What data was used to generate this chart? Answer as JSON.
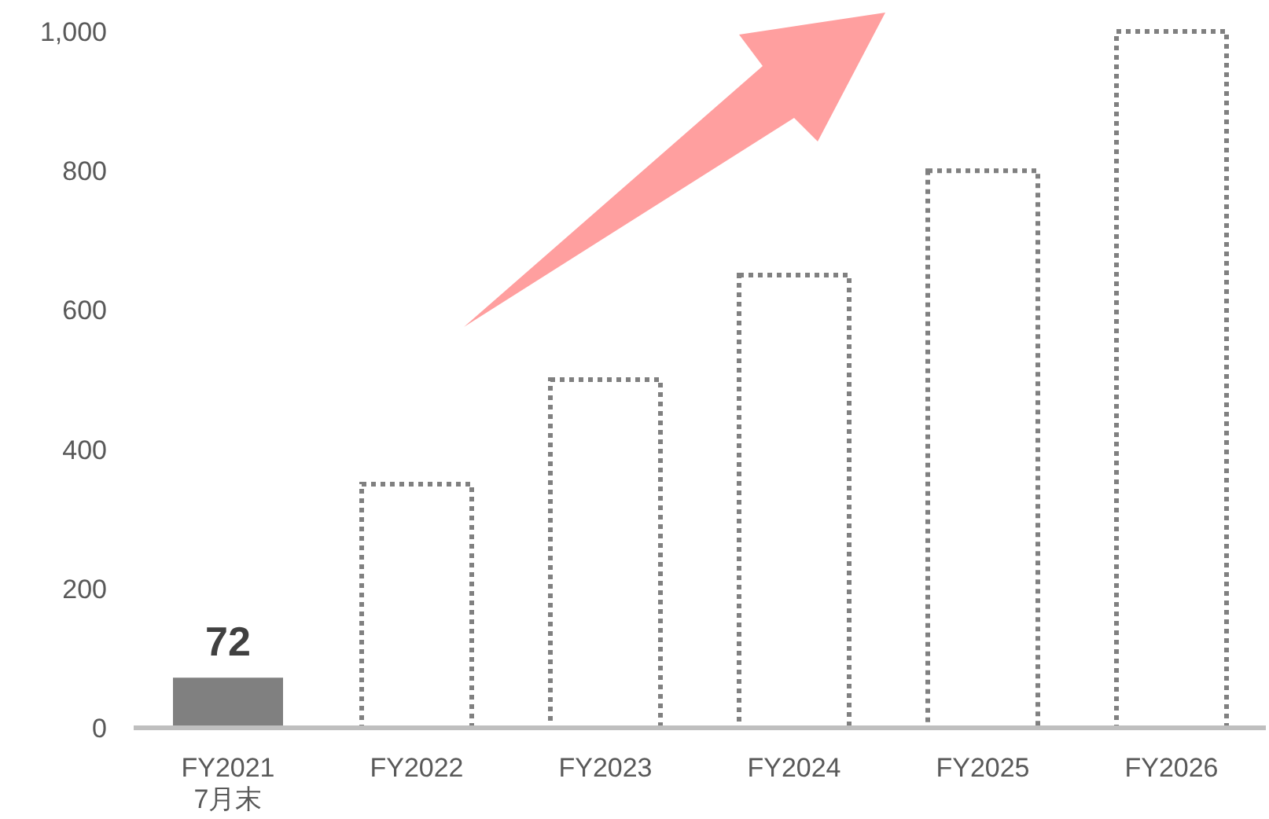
{
  "chart_data": {
    "type": "bar",
    "categories": [
      "FY2021\n7月末",
      "FY2022",
      "FY2023",
      "FY2024",
      "FY2025",
      "FY2026"
    ],
    "series": [
      {
        "color": "#808080",
        "values": [
          72,
          null,
          null,
          null,
          null,
          null
        ],
        "value_labels": [
          "72",
          null,
          null,
          null,
          null,
          null
        ]
      },
      {
        "color": "#808080",
        "line_style": "dotted",
        "values": [
          null,
          350,
          500,
          650,
          800,
          1000
        ]
      }
    ],
    "ylim": [
      0,
      1000
    ],
    "yticks": [
      0,
      200,
      400,
      600,
      800,
      {
        "value": 1000,
        "label": "1,000"
      }
    ],
    "grid": false
  }
}
